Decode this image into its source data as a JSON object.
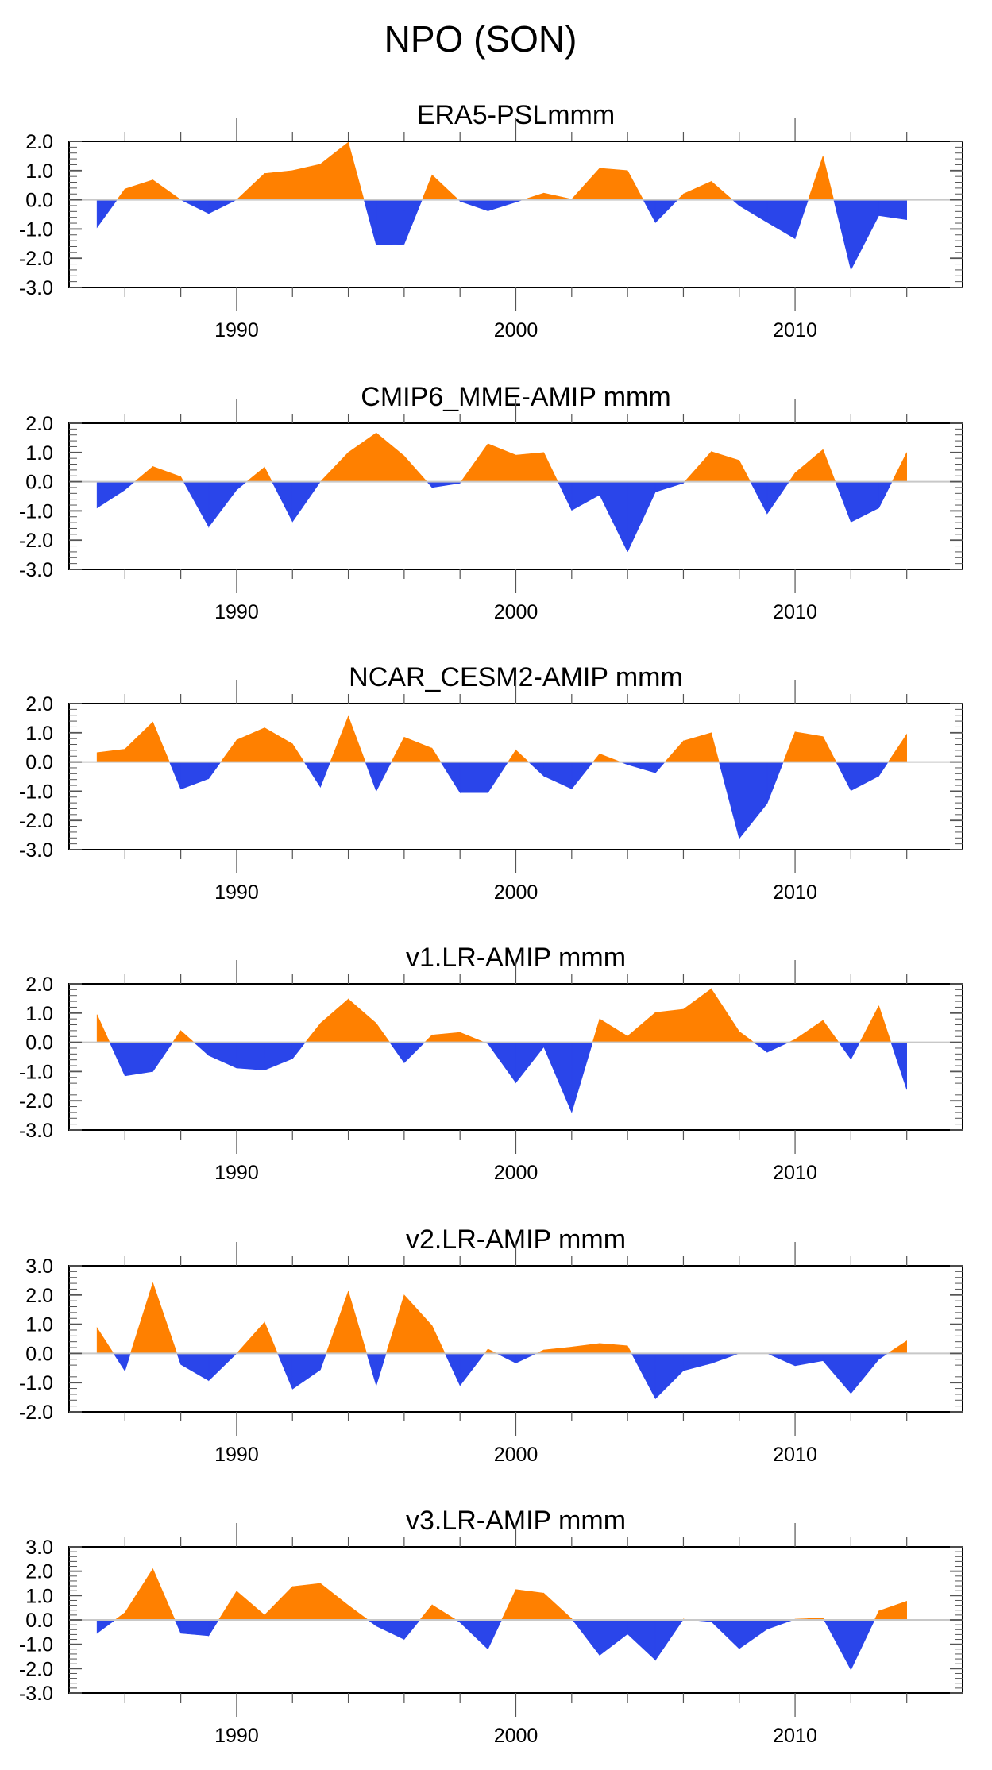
{
  "figure_title": "NPO (SON)",
  "colors": {
    "positive": "#ff8000",
    "negative": "#2a45ea",
    "axis": "#000000",
    "zero_line": "#c8c8c8"
  },
  "chart_data": [
    {
      "type": "area",
      "title": "ERA5-PSLmmm",
      "xlabel": "",
      "ylabel": "",
      "xlim": [
        1984,
        2016
      ],
      "ylim": [
        -3,
        2
      ],
      "yticks": [
        "2.0",
        "1.0",
        "0.0",
        "-1.0",
        "-2.0",
        "-3.0"
      ],
      "xticks": [
        "1990",
        "2000",
        "2010"
      ],
      "x": [
        1985,
        1986,
        1987,
        1988,
        1989,
        1990,
        1991,
        1992,
        1993,
        1994,
        1995,
        1996,
        1997,
        1998,
        1999,
        2000,
        2001,
        2002,
        2003,
        2004,
        2005,
        2006,
        2007,
        2008,
        2009,
        2010,
        2011,
        2012,
        2013,
        2014
      ],
      "values": [
        -0.95,
        0.37,
        0.68,
        0.0,
        -0.47,
        0.0,
        0.9,
        1.0,
        1.22,
        1.97,
        -1.55,
        -1.52,
        0.85,
        -0.05,
        -0.38,
        -0.08,
        0.23,
        0.02,
        1.08,
        1.0,
        -0.78,
        0.2,
        0.63,
        -0.2,
        -0.77,
        -1.33,
        1.5,
        -2.4,
        -0.54,
        -0.68
      ]
    },
    {
      "type": "area",
      "title": "CMIP6_MME-AMIP  mmm",
      "xlabel": "",
      "ylabel": "",
      "xlim": [
        1984,
        2016
      ],
      "ylim": [
        -3,
        2
      ],
      "yticks": [
        "2.0",
        "1.0",
        "0.0",
        "-1.0",
        "-2.0",
        "-3.0"
      ],
      "xticks": [
        "1990",
        "2000",
        "2010"
      ],
      "x": [
        1985,
        1986,
        1987,
        1988,
        1989,
        1990,
        1991,
        1992,
        1993,
        1994,
        1995,
        1996,
        1997,
        1998,
        1999,
        2000,
        2001,
        2002,
        2003,
        2004,
        2005,
        2006,
        2007,
        2008,
        2009,
        2010,
        2011,
        2012,
        2013,
        2014
      ],
      "values": [
        -0.9,
        -0.28,
        0.52,
        0.17,
        -1.55,
        -0.28,
        0.5,
        -1.37,
        0.0,
        1.0,
        1.67,
        0.88,
        -0.2,
        -0.05,
        1.3,
        0.91,
        1.0,
        -0.98,
        -0.45,
        -2.4,
        -0.35,
        -0.05,
        1.03,
        0.73,
        -1.1,
        0.3,
        1.1,
        -1.38,
        -0.9,
        1.0
      ]
    },
    {
      "type": "area",
      "title": "NCAR_CESM2-AMIP  mmm",
      "xlabel": "",
      "ylabel": "",
      "xlim": [
        1984,
        2016
      ],
      "ylim": [
        -3,
        2
      ],
      "yticks": [
        "2.0",
        "1.0",
        "0.0",
        "-1.0",
        "-2.0",
        "-3.0"
      ],
      "xticks": [
        "1990",
        "2000",
        "2010"
      ],
      "x": [
        1985,
        1986,
        1987,
        1988,
        1989,
        1990,
        1991,
        1992,
        1993,
        1994,
        1995,
        1996,
        1997,
        1998,
        1999,
        2000,
        2001,
        2002,
        2003,
        2004,
        2005,
        2006,
        2007,
        2008,
        2009,
        2010,
        2011,
        2012,
        2013,
        2014
      ],
      "values": [
        0.32,
        0.44,
        1.37,
        -0.93,
        -0.57,
        0.75,
        1.17,
        0.62,
        -0.86,
        1.57,
        -1.0,
        0.85,
        0.47,
        -1.05,
        -1.05,
        0.41,
        -0.48,
        -0.92,
        0.28,
        -0.09,
        -0.37,
        0.72,
        1.0,
        -2.62,
        -1.42,
        1.03,
        0.87,
        -0.98,
        -0.48,
        0.95
      ]
    },
    {
      "type": "area",
      "title": "v1.LR-AMIP  mmm",
      "xlabel": "",
      "ylabel": "",
      "xlim": [
        1984,
        2016
      ],
      "ylim": [
        -3,
        2
      ],
      "yticks": [
        "2.0",
        "1.0",
        "0.0",
        "-1.0",
        "-2.0",
        "-3.0"
      ],
      "xticks": [
        "1990",
        "2000",
        "2010"
      ],
      "x": [
        1985,
        1986,
        1987,
        1988,
        1989,
        1990,
        1991,
        1992,
        1993,
        1994,
        1995,
        1996,
        1997,
        1998,
        1999,
        2000,
        2001,
        2002,
        2003,
        2004,
        2005,
        2006,
        2007,
        2008,
        2009,
        2010,
        2011,
        2012,
        2013,
        2014
      ],
      "values": [
        0.95,
        -1.15,
        -1.0,
        0.4,
        -0.45,
        -0.88,
        -0.95,
        -0.56,
        0.65,
        1.48,
        0.65,
        -0.7,
        0.25,
        0.34,
        -0.05,
        -1.38,
        -0.16,
        -2.4,
        0.8,
        0.21,
        1.02,
        1.13,
        1.83,
        0.37,
        -0.34,
        0.1,
        0.75,
        -0.58,
        1.25,
        -1.62
      ]
    },
    {
      "type": "area",
      "title": "v2.LR-AMIP  mmm",
      "xlabel": "",
      "ylabel": "",
      "xlim": [
        1984,
        2016
      ],
      "ylim": [
        -2,
        3
      ],
      "yticks": [
        "3.0",
        "2.0",
        "1.0",
        "0.0",
        "-1.0",
        "-2.0"
      ],
      "xticks": [
        "1990",
        "2000",
        "2010"
      ],
      "x": [
        1985,
        1986,
        1987,
        1988,
        1989,
        1990,
        1991,
        1992,
        1993,
        1994,
        1995,
        1996,
        1997,
        1998,
        1999,
        2000,
        2001,
        2002,
        2003,
        2004,
        2005,
        2006,
        2007,
        2008,
        2009,
        2010,
        2011,
        2012,
        2013,
        2014
      ],
      "values": [
        0.88,
        -0.6,
        2.42,
        -0.38,
        -0.93,
        0.0,
        1.07,
        -1.22,
        -0.56,
        2.13,
        -1.1,
        2.0,
        0.95,
        -1.1,
        0.15,
        -0.33,
        0.12,
        0.22,
        0.34,
        0.26,
        -1.55,
        -0.59,
        -0.34,
        0.0,
        0.0,
        -0.42,
        -0.25,
        -1.37,
        -0.2,
        0.43
      ]
    },
    {
      "type": "area",
      "title": "v3.LR-AMIP  mmm",
      "xlabel": "",
      "ylabel": "",
      "xlim": [
        1984,
        2016
      ],
      "ylim": [
        -3,
        3
      ],
      "yticks": [
        "3.0",
        "2.0",
        "1.0",
        "0.0",
        "-1.0",
        "-2.0",
        "-3.0"
      ],
      "xticks": [
        "1990",
        "2000",
        "2010"
      ],
      "x": [
        1985,
        1986,
        1987,
        1988,
        1989,
        1990,
        1991,
        1992,
        1993,
        1994,
        1995,
        1996,
        1997,
        1998,
        1999,
        2000,
        2001,
        2002,
        2003,
        2004,
        2005,
        2006,
        2007,
        2008,
        2009,
        2010,
        2011,
        2012,
        2013,
        2014
      ],
      "values": [
        -0.55,
        0.3,
        2.1,
        -0.55,
        -0.65,
        1.18,
        0.2,
        1.37,
        1.5,
        0.6,
        -0.25,
        -0.8,
        0.62,
        -0.1,
        -1.2,
        1.25,
        1.1,
        0.05,
        -1.45,
        -0.58,
        -1.65,
        0.03,
        -0.07,
        -1.18,
        -0.38,
        0.03,
        0.08,
        -2.05,
        0.37,
        0.77
      ]
    }
  ]
}
